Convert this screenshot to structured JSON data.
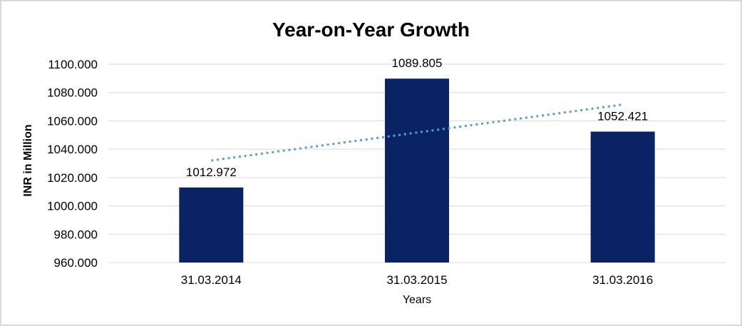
{
  "window": {
    "background": "#ffffff",
    "border_color": "#d9d9d9"
  },
  "chart_data": {
    "type": "bar",
    "title": "Year-on-Year Growth",
    "xlabel": "Years",
    "ylabel": "INR in Million",
    "categories": [
      "31.03.2014",
      "31.03.2015",
      "31.03.2016"
    ],
    "values": [
      1012.972,
      1089.805,
      1052.421
    ],
    "value_labels": [
      "1012.972",
      "1089.805",
      "1052.421"
    ],
    "ylim": [
      960,
      1100
    ],
    "ytick_step": 20,
    "ytick_labels": [
      "960.000",
      "980.000",
      "1000.000",
      "1020.000",
      "1040.000",
      "1060.000",
      "1080.000",
      "1100.000"
    ],
    "grid": true,
    "legend": "none",
    "colors": {
      "bar": "#0a2365",
      "gridline": "#d9d9d9",
      "axis_line": "#d9d9d9",
      "text": "#000000",
      "trendline": "#5b9bd5"
    },
    "trendline": {
      "style": "dotted",
      "color": "#5b9bd5",
      "start_value": 1032.0,
      "end_value": 1071.5
    }
  }
}
